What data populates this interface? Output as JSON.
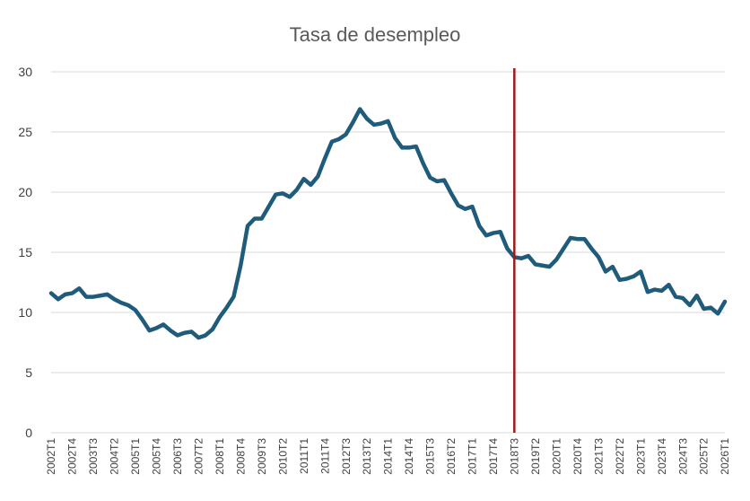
{
  "chart_data": {
    "type": "line",
    "title": "Tasa de desempleo",
    "xlabel": "",
    "ylabel": "",
    "ylim": [
      0,
      30
    ],
    "yticks": [
      0,
      5,
      10,
      15,
      20,
      25,
      30
    ],
    "grid": "horizontal",
    "legend": "none",
    "colors": {
      "series": "#1f5b7a",
      "marker_line": "#9b1c1c",
      "grid": "#d9d9d9"
    },
    "x": [
      "2002T1",
      "2002T2",
      "2002T3",
      "2002T4",
      "2003T1",
      "2003T2",
      "2003T3",
      "2003T4",
      "2004T1",
      "2004T2",
      "2004T3",
      "2004T4",
      "2005T1",
      "2005T2",
      "2005T3",
      "2005T4",
      "2006T1",
      "2006T2",
      "2006T3",
      "2006T4",
      "2007T1",
      "2007T2",
      "2007T3",
      "2007T4",
      "2008T1",
      "2008T2",
      "2008T3",
      "2008T4",
      "2009T1",
      "2009T2",
      "2009T3",
      "2009T4",
      "2010T1",
      "2010T2",
      "2010T3",
      "2010T4",
      "2011T1",
      "2011T2",
      "2011T3",
      "2011T4",
      "2012T1",
      "2012T2",
      "2012T3",
      "2012T4",
      "2013T1",
      "2013T2",
      "2013T3",
      "2013T4",
      "2014T1",
      "2014T2",
      "2014T3",
      "2014T4",
      "2015T1",
      "2015T2",
      "2015T3",
      "2015T4",
      "2016T1",
      "2016T2",
      "2016T3",
      "2016T4",
      "2017T1",
      "2017T2",
      "2017T3",
      "2017T4",
      "2018T1",
      "2018T2",
      "2018T3",
      "2018T4",
      "2019T1",
      "2019T2",
      "2019T3",
      "2019T4",
      "2020T1",
      "2020T2",
      "2020T3",
      "2020T4",
      "2021T1",
      "2021T2",
      "2021T3",
      "2021T4",
      "2022T1",
      "2022T2",
      "2022T3",
      "2022T4",
      "2023T1",
      "2023T2",
      "2023T3",
      "2023T4",
      "2024T1",
      "2024T2",
      "2024T3",
      "2024T4",
      "2025T1",
      "2025T2",
      "2025T3",
      "2025T4",
      "2026T1"
    ],
    "x_tick_labels": [
      "2002T1",
      "2002T4",
      "2003T3",
      "2004T2",
      "2005T1",
      "2005T4",
      "2006T3",
      "2007T2",
      "2008T1",
      "2008T4",
      "2009T3",
      "2010T2",
      "2011T1",
      "2011T4",
      "2012T3",
      "2013T2",
      "2014T1",
      "2014T4",
      "2015T3",
      "2016T2",
      "2017T1",
      "2017T4",
      "2018T3",
      "2019T2",
      "2020T1",
      "2020T4",
      "2021T3",
      "2022T2",
      "2023T1",
      "2023T4",
      "2024T3",
      "2025T2",
      "2026T1"
    ],
    "series": [
      {
        "values": [
          11.6,
          11.1,
          11.5,
          11.6,
          12.0,
          11.3,
          11.3,
          11.4,
          11.5,
          11.1,
          10.8,
          10.6,
          10.2,
          9.4,
          8.5,
          8.7,
          9.0,
          8.5,
          8.1,
          8.3,
          8.4,
          7.9,
          8.1,
          8.6,
          9.6,
          10.4,
          11.3,
          13.9,
          17.2,
          17.8,
          17.8,
          18.8,
          19.8,
          19.9,
          19.6,
          20.2,
          21.1,
          20.6,
          21.3,
          22.8,
          24.2,
          24.4,
          24.8,
          25.8,
          26.9,
          26.1,
          25.6,
          25.7,
          25.9,
          24.5,
          23.7,
          23.7,
          23.8,
          22.4,
          21.2,
          20.9,
          21.0,
          19.9,
          18.9,
          18.6,
          18.8,
          17.2,
          16.4,
          16.6,
          16.7,
          15.3,
          14.6,
          14.5,
          14.7,
          14.0,
          13.9,
          13.8,
          14.4,
          15.3,
          16.2,
          16.1,
          16.1,
          15.3,
          14.6,
          13.4,
          13.8,
          12.7,
          12.8,
          13.0,
          13.4,
          11.7,
          11.9,
          11.8,
          12.3,
          11.3,
          11.2,
          10.6,
          11.4,
          10.3,
          10.4,
          9.9,
          10.9
        ]
      }
    ],
    "vertical_marker": {
      "x": "2018T3"
    }
  }
}
